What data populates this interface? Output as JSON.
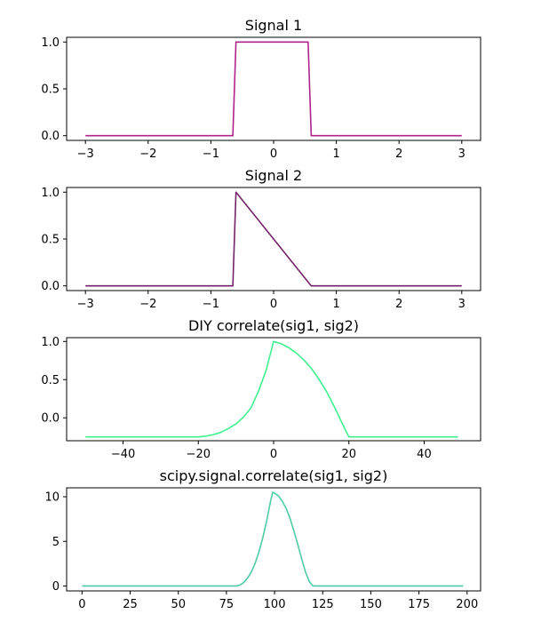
{
  "chart_data": [
    {
      "type": "line",
      "title": "Signal 1",
      "xlim": [
        -3.3,
        3.3
      ],
      "ylim": [
        -0.05,
        1.05
      ],
      "xticks": [
        -3,
        -2,
        -1,
        0,
        1,
        2,
        3
      ],
      "xtick_labels": [
        "−3",
        "−2",
        "−1",
        "0",
        "1",
        "2",
        "3"
      ],
      "yticks": [
        0.0,
        0.5,
        1.0
      ],
      "ytick_labels": [
        "0.0",
        "0.5",
        "1.0"
      ],
      "color": "#b0238a",
      "series": [
        {
          "x": [
            -3,
            -0.65,
            -0.6,
            0.55,
            0.6,
            3
          ],
          "y": [
            0,
            0,
            1,
            1,
            0,
            0
          ]
        }
      ]
    },
    {
      "type": "line",
      "title": "Signal 2",
      "xlim": [
        -3.3,
        3.3
      ],
      "ylim": [
        -0.05,
        1.05
      ],
      "xticks": [
        -3,
        -2,
        -1,
        0,
        1,
        2,
        3
      ],
      "xtick_labels": [
        "−3",
        "−2",
        "−1",
        "0",
        "1",
        "2",
        "3"
      ],
      "yticks": [
        0.0,
        0.5,
        1.0
      ],
      "ytick_labels": [
        "0.0",
        "0.5",
        "1.0"
      ],
      "color": "#74226a",
      "series": [
        {
          "x": [
            -3,
            -0.65,
            -0.6,
            0.6,
            3
          ],
          "y": [
            0,
            0,
            1,
            0,
            0
          ]
        }
      ]
    },
    {
      "type": "line",
      "title": "DIY correlate(sig1, sig2)",
      "xlim": [
        -55,
        55
      ],
      "ylim": [
        -0.3,
        1.05
      ],
      "xticks": [
        -40,
        -20,
        0,
        20,
        40
      ],
      "xtick_labels": [
        "−40",
        "−20",
        "0",
        "20",
        "40"
      ],
      "yticks": [
        0.0,
        0.5,
        1.0
      ],
      "ytick_labels": [
        "0.0",
        "0.5",
        "1.0"
      ],
      "color": "#3ef08e",
      "series": [
        {
          "x": [
            -50,
            -20,
            -18,
            -16,
            -14,
            -12,
            -10,
            -8,
            -6,
            -4,
            -2,
            0,
            2,
            4,
            6,
            8,
            10,
            12,
            14,
            16,
            18,
            20,
            49
          ],
          "y": [
            -0.25,
            -0.25,
            -0.24,
            -0.22,
            -0.19,
            -0.14,
            -0.08,
            0.01,
            0.13,
            0.35,
            0.62,
            1.0,
            0.97,
            0.92,
            0.85,
            0.76,
            0.65,
            0.51,
            0.35,
            0.16,
            -0.05,
            -0.25,
            -0.25
          ]
        }
      ]
    },
    {
      "type": "line",
      "title": "scipy.signal.correlate(sig1, sig2)",
      "xlim": [
        -8,
        207
      ],
      "ylim": [
        -0.55,
        11.0
      ],
      "xticks": [
        0,
        25,
        50,
        75,
        100,
        125,
        150,
        175,
        200
      ],
      "xtick_labels": [
        "0",
        "25",
        "50",
        "75",
        "100",
        "125",
        "150",
        "175",
        "200"
      ],
      "yticks": [
        0,
        5,
        10
      ],
      "ytick_labels": [
        "0",
        "5",
        "10"
      ],
      "color": "#4ecba8",
      "series": [
        {
          "x": [
            0,
            80,
            82,
            84,
            86,
            88,
            90,
            92,
            94,
            96,
            98,
            99,
            100,
            102,
            104,
            106,
            108,
            110,
            112,
            114,
            116,
            118,
            120,
            198
          ],
          "y": [
            0,
            0,
            0.1,
            0.4,
            0.9,
            1.6,
            2.6,
            3.9,
            5.5,
            7.4,
            9.6,
            10.5,
            10.4,
            10.1,
            9.5,
            8.7,
            7.6,
            6.2,
            4.7,
            3.1,
            1.6,
            0.5,
            0,
            0
          ]
        }
      ]
    }
  ]
}
